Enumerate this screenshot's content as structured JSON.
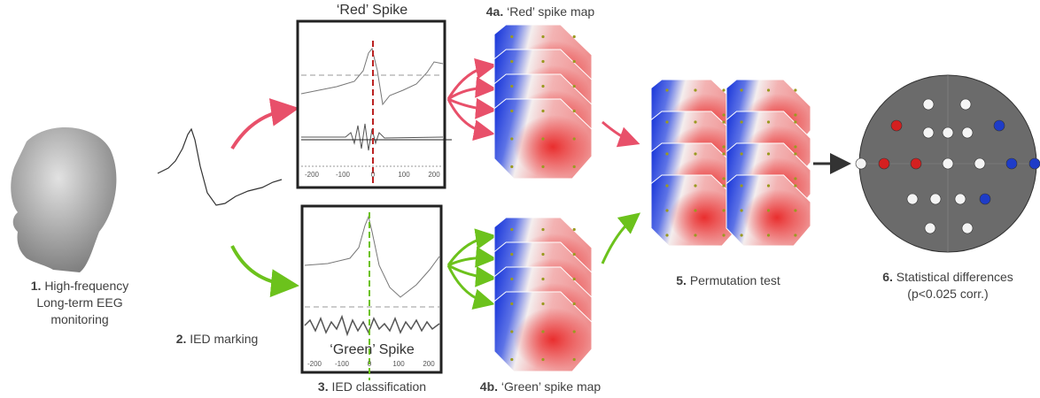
{
  "steps": [
    {
      "number": "1.",
      "lines": [
        "High-frequency",
        "Long-term EEG",
        "monitoring"
      ]
    },
    {
      "number": "2.",
      "lines": [
        "IED marking"
      ]
    },
    {
      "number": "3.",
      "lines": [
        "IED classification"
      ]
    },
    {
      "number": "4a.",
      "lines": [
        "‘Red’ spike map"
      ]
    },
    {
      "number": "4b.",
      "lines": [
        "‘Green’ spike map"
      ]
    },
    {
      "number": "5.",
      "lines": [
        "Permutation test"
      ]
    },
    {
      "number": "6.",
      "lines": [
        "Statistical differences",
        "(p<0.025 corr.)"
      ]
    }
  ],
  "red_panel": {
    "title": "‘Red’ Spike",
    "xticks": [
      "-200",
      "-100",
      "0",
      "100",
      "200"
    ]
  },
  "green_panel": {
    "title": "‘Green’ Spike",
    "xticks": [
      "-200",
      "-100",
      "0",
      "100",
      "200"
    ]
  }
}
